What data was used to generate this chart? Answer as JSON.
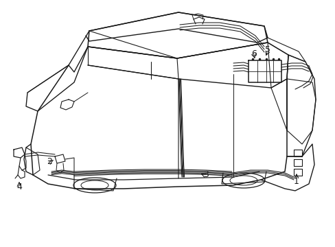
{
  "bg_color": "#ffffff",
  "line_color": "#1a1a1a",
  "lw": 0.9,
  "figsize": [
    4.89,
    3.6
  ],
  "dpi": 100,
  "label_fontsize": 9
}
